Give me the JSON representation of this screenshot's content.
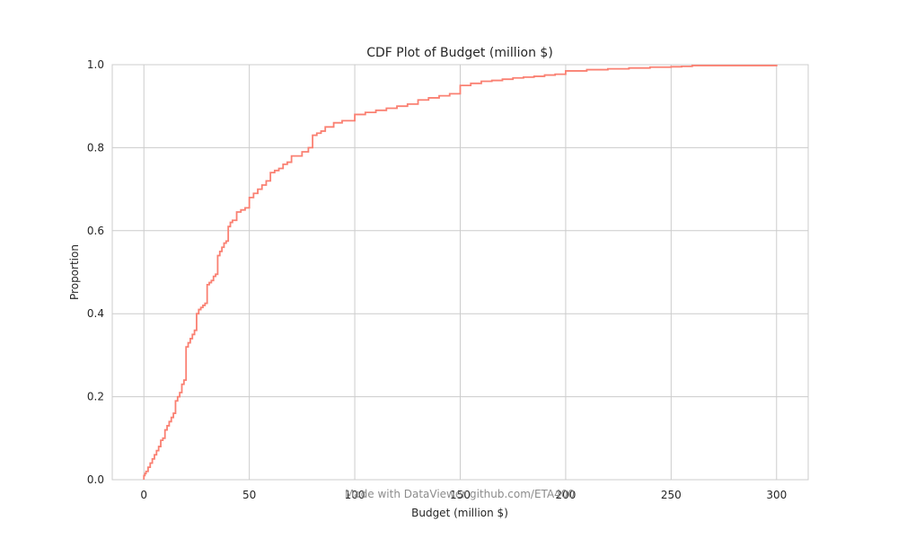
{
  "chart_data": {
    "type": "line",
    "step": true,
    "title": "CDF Plot of Budget (million $)",
    "xlabel": "Budget (million $)",
    "ylabel": "Proportion",
    "xlim": [
      -15,
      315
    ],
    "ylim": [
      0,
      1
    ],
    "xticks": [
      "0",
      "50",
      "100",
      "150",
      "200",
      "250",
      "300"
    ],
    "yticks": [
      "0.0",
      "0.2",
      "0.4",
      "0.6",
      "0.8",
      "1.0"
    ],
    "grid": true,
    "line_color": "#fa8072",
    "series": [
      {
        "x": [
          0,
          0.5,
          1,
          2,
          3,
          4,
          5,
          6,
          7,
          8,
          9,
          10,
          11,
          12,
          13,
          14,
          15,
          16,
          17,
          18,
          19,
          20,
          21,
          22,
          23,
          24,
          25,
          26,
          27,
          28,
          29,
          30,
          31,
          32,
          33,
          34,
          35,
          36,
          37,
          38,
          39,
          40,
          41,
          42,
          43,
          44,
          45,
          46,
          47,
          48,
          49,
          50,
          52,
          54,
          56,
          58,
          60,
          62,
          64,
          66,
          68,
          70,
          72,
          75,
          78,
          80,
          82,
          84,
          86,
          88,
          90,
          92,
          94,
          96,
          98,
          100,
          105,
          110,
          115,
          120,
          125,
          130,
          135,
          140,
          145,
          150,
          155,
          160,
          165,
          170,
          175,
          180,
          185,
          190,
          195,
          200,
          210,
          220,
          230,
          240,
          250,
          255,
          260,
          300
        ],
        "y": [
          0.01,
          0.015,
          0.02,
          0.03,
          0.04,
          0.05,
          0.06,
          0.07,
          0.08,
          0.095,
          0.1,
          0.12,
          0.13,
          0.14,
          0.15,
          0.16,
          0.19,
          0.2,
          0.21,
          0.23,
          0.24,
          0.32,
          0.33,
          0.34,
          0.35,
          0.36,
          0.4,
          0.41,
          0.415,
          0.42,
          0.425,
          0.47,
          0.475,
          0.48,
          0.49,
          0.495,
          0.54,
          0.55,
          0.56,
          0.57,
          0.575,
          0.61,
          0.62,
          0.625,
          0.625,
          0.645,
          0.645,
          0.65,
          0.65,
          0.655,
          0.655,
          0.68,
          0.69,
          0.7,
          0.71,
          0.72,
          0.74,
          0.745,
          0.75,
          0.76,
          0.765,
          0.78,
          0.78,
          0.79,
          0.8,
          0.83,
          0.835,
          0.84,
          0.85,
          0.85,
          0.86,
          0.86,
          0.865,
          0.865,
          0.865,
          0.88,
          0.885,
          0.89,
          0.895,
          0.9,
          0.905,
          0.915,
          0.92,
          0.925,
          0.93,
          0.95,
          0.955,
          0.96,
          0.962,
          0.965,
          0.968,
          0.97,
          0.972,
          0.975,
          0.977,
          0.985,
          0.988,
          0.99,
          0.992,
          0.994,
          0.995,
          0.996,
          0.998,
          1.0
        ]
      }
    ]
  },
  "watermark": "Made with DataViewer github.com/ETA400"
}
